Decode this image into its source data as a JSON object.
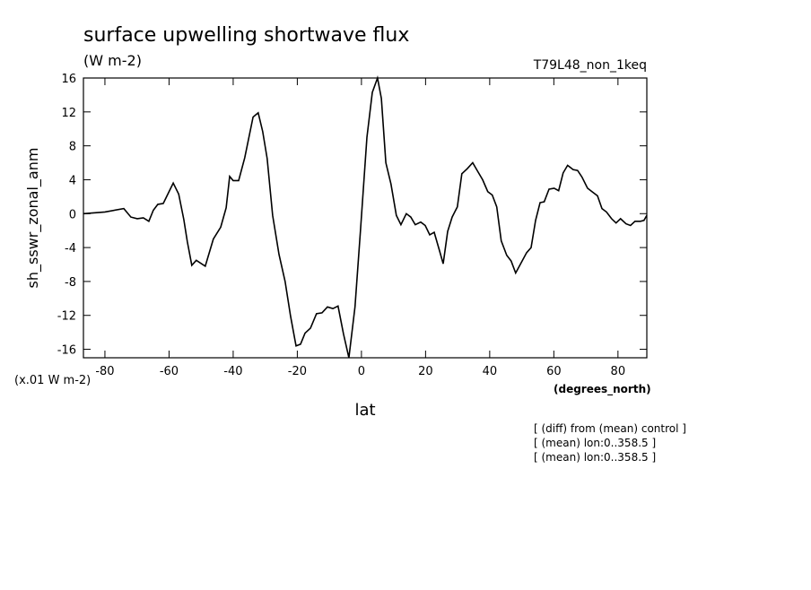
{
  "chart_data": {
    "type": "line",
    "title": "surface upwelling shortwave flux",
    "subtitle": "(W m-2)",
    "run_label": "T79L48_non_1keq",
    "ylabel": "sh_sswr_zonal_anm",
    "y_units": "(x.01 W m-2)",
    "xlabel": "lat",
    "x_units": "(degrees_north)",
    "notes": [
      "[ (diff) from (mean) control ]",
      "[ (mean) lon:0..358.5 ]",
      "[ (mean) lon:0..358.5 ]"
    ],
    "color": "#000000",
    "xlim": [
      -86.7,
      89
    ],
    "xticks": [
      -80,
      -60,
      -40,
      -20,
      0,
      20,
      40,
      60,
      80
    ],
    "ylim": [
      -17,
      16
    ],
    "yticks": [
      -16,
      -12,
      -8,
      -4,
      0,
      4,
      8,
      12,
      16
    ],
    "x": [
      -86.7,
      -80,
      -74.1,
      -71.9,
      -69.9,
      -68,
      -66.3,
      -64.9,
      -63.5,
      -61.8,
      -58.7,
      -57,
      -55.4,
      -54.3,
      -52.9,
      -51.5,
      -48.7,
      -46.2,
      -43.9,
      -42.2,
      -41.1,
      -40,
      -38.3,
      -36.4,
      -33.8,
      -32.2,
      -30.8,
      -29.4,
      -27.7,
      -25.7,
      -23.8,
      -22.1,
      -20.4,
      -19,
      -17.6,
      -15.9,
      -14,
      -12.3,
      -10.6,
      -8.9,
      -7.3,
      -5.6,
      -3.9,
      -2,
      -0.3,
      1.7,
      3.4,
      5,
      6.2,
      7.6,
      9.2,
      10.9,
      12.3,
      14,
      15.4,
      16.8,
      18.5,
      19.9,
      21.3,
      22.7,
      24.3,
      25.5,
      26.9,
      28.3,
      29.9,
      31.3,
      33,
      34.7,
      36.1,
      37.8,
      39.4,
      40.8,
      42.2,
      43.6,
      45.3,
      46.7,
      48.1,
      49.8,
      51.5,
      52.9,
      54.3,
      55.7,
      57,
      58.5,
      60.1,
      61.5,
      62.9,
      64.3,
      66,
      67.4,
      68.8,
      70.5,
      71.9,
      73.6,
      75,
      76.4,
      78,
      79.4,
      80.8,
      82.5,
      83.9,
      85.3,
      87,
      88.1,
      89
    ],
    "values": [
      0,
      0.2,
      0.6,
      -0.4,
      -0.6,
      -0.5,
      -0.9,
      0.4,
      1.1,
      1.2,
      3.6,
      2.3,
      -0.7,
      -3.3,
      -6.1,
      -5.5,
      -6.2,
      -3,
      -1.6,
      0.7,
      4.4,
      3.9,
      3.9,
      6.6,
      11.4,
      11.9,
      9.7,
      6.5,
      -0.2,
      -4.8,
      -8,
      -12.1,
      -15.6,
      -15.4,
      -14.1,
      -13.5,
      -11.8,
      -11.7,
      -11,
      -11.2,
      -10.9,
      -14.2,
      -17,
      -11,
      -2,
      9,
      14.3,
      16,
      13.6,
      6,
      3.5,
      -0.2,
      -1.3,
      0,
      -0.4,
      -1.3,
      -1,
      -1.4,
      -2.5,
      -2.2,
      -4.3,
      -5.9,
      -2.1,
      -0.4,
      0.8,
      4.7,
      5.3,
      6,
      5.1,
      4,
      2.6,
      2.2,
      0.8,
      -3.2,
      -4.9,
      -5.6,
      -7,
      -5.8,
      -4.6,
      -4,
      -0.8,
      1.3,
      1.4,
      2.9,
      3,
      2.7,
      4.8,
      5.7,
      5.2,
      5.1,
      4.3,
      3,
      2.6,
      2.1,
      0.6,
      0.2,
      -0.6,
      -1.1,
      -0.6,
      -1.2,
      -1.4,
      -0.9,
      -0.9,
      -0.8,
      -0.2
    ]
  }
}
